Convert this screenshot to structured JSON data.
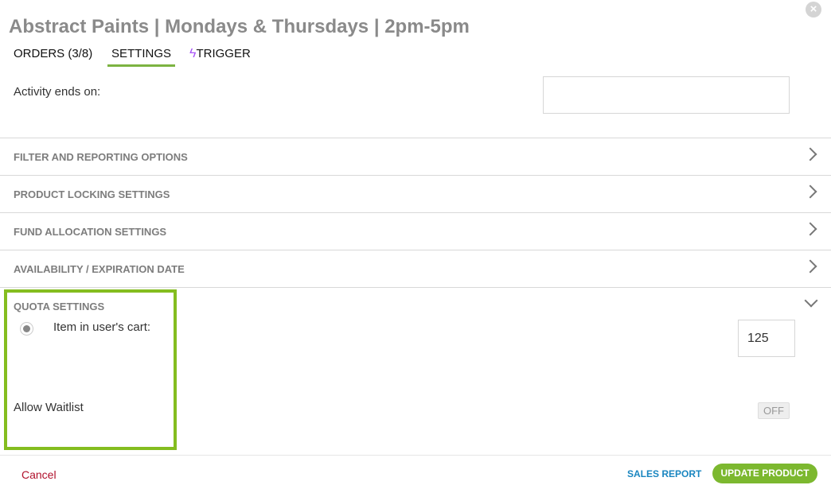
{
  "header": {
    "title": "Abstract Paints | Mondays & Thursdays | 2pm-5pm",
    "close_icon": "×"
  },
  "tabs": [
    {
      "label": "ORDERS (3/8)"
    },
    {
      "label": "SETTINGS",
      "active": true
    },
    {
      "label": "TRIGGER",
      "icon": "lightning-icon",
      "icon_glyph": "ϟ"
    }
  ],
  "activity": {
    "label": "Activity ends on:",
    "value": ""
  },
  "sections": [
    {
      "label": "FILTER AND REPORTING OPTIONS"
    },
    {
      "label": "PRODUCT LOCKING SETTINGS"
    },
    {
      "label": "FUND ALLOCATION SETTINGS"
    },
    {
      "label": "AVAILABILITY / EXPIRATION DATE"
    }
  ],
  "quota": {
    "label": "QUOTA SETTINGS",
    "cart_label": "Item in user's cart:",
    "cart_value": "125",
    "waitlist_label": "Allow Waitlist",
    "waitlist_toggle": "OFF"
  },
  "footer": {
    "cancel": "Cancel",
    "sales_report": "SALES REPORT",
    "update": "UPDATE PRODUCT"
  },
  "colors": {
    "accent": "#7cb82f",
    "highlight": "#84bd1f",
    "cancel": "#b0102b",
    "link": "#1a86c0"
  }
}
